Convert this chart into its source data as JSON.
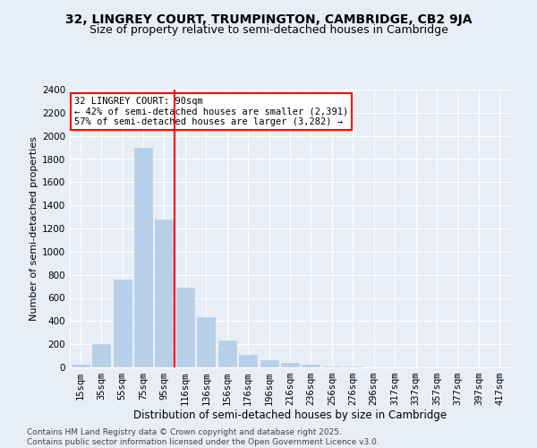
{
  "title1": "32, LINGREY COURT, TRUMPINGTON, CAMBRIDGE, CB2 9JA",
  "title2": "Size of property relative to semi-detached houses in Cambridge",
  "xlabel": "Distribution of semi-detached houses by size in Cambridge",
  "ylabel": "Number of semi-detached properties",
  "categories": [
    "15sqm",
    "35sqm",
    "55sqm",
    "75sqm",
    "95sqm",
    "116sqm",
    "136sqm",
    "156sqm",
    "176sqm",
    "196sqm",
    "216sqm",
    "236sqm",
    "256sqm",
    "276sqm",
    "296sqm",
    "317sqm",
    "337sqm",
    "357sqm",
    "377sqm",
    "397sqm",
    "417sqm"
  ],
  "values": [
    20,
    200,
    760,
    1900,
    1280,
    690,
    435,
    230,
    110,
    60,
    35,
    20,
    10,
    5,
    3,
    2,
    2,
    1,
    1,
    0,
    0
  ],
  "bar_color": "#b8cfe8",
  "bar_edge_color": "#b8cfe8",
  "vline_color": "red",
  "annotation_title": "32 LINGREY COURT: 90sqm",
  "annotation_line1": "← 42% of semi-detached houses are smaller (2,391)",
  "annotation_line2": "57% of semi-detached houses are larger (3,282) →",
  "annotation_box_color": "white",
  "annotation_box_edge": "red",
  "ylim": [
    0,
    2400
  ],
  "yticks": [
    0,
    200,
    400,
    600,
    800,
    1000,
    1200,
    1400,
    1600,
    1800,
    2000,
    2200,
    2400
  ],
  "background_color": "#e8eef7",
  "footer1": "Contains HM Land Registry data © Crown copyright and database right 2025.",
  "footer2": "Contains public sector information licensed under the Open Government Licence v3.0.",
  "title1_fontsize": 10,
  "title2_fontsize": 9,
  "xlabel_fontsize": 8.5,
  "ylabel_fontsize": 8,
  "tick_fontsize": 7.5,
  "annotation_fontsize": 7.5,
  "footer_fontsize": 6.5
}
